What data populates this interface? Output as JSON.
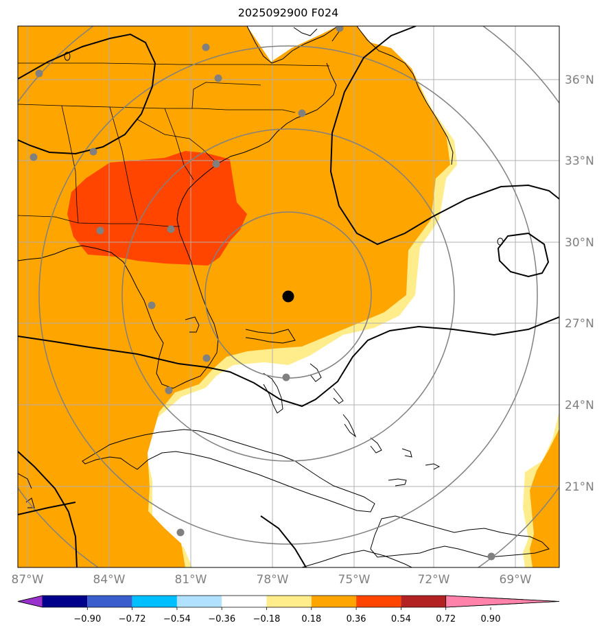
{
  "title": "2025092900 F024",
  "lon_labels": [
    "87°W",
    "84°W",
    "81°W",
    "78°W",
    "75°W",
    "72°W",
    "69°W"
  ],
  "lat_labels": [
    "36°N",
    "33°N",
    "30°N",
    "27°N",
    "24°N",
    "21°N"
  ],
  "colorbar": {
    "ticks": [
      "−0.90",
      "−0.72",
      "−0.54",
      "−0.36",
      "−0.18",
      "0.18",
      "0.36",
      "0.54",
      "0.72",
      "0.90"
    ],
    "colors": [
      "#9932cc",
      "#00008b",
      "#3a5fcd",
      "#00bfff",
      "#b0e2ff",
      "#ffffff",
      "#ffec8b",
      "#ffa500",
      "#ff4500",
      "#b22222",
      "#ff82ab"
    ]
  },
  "fill_colors": {
    "light": "#ffec8b",
    "orange": "#ffa500",
    "red": "#ff4500"
  }
}
